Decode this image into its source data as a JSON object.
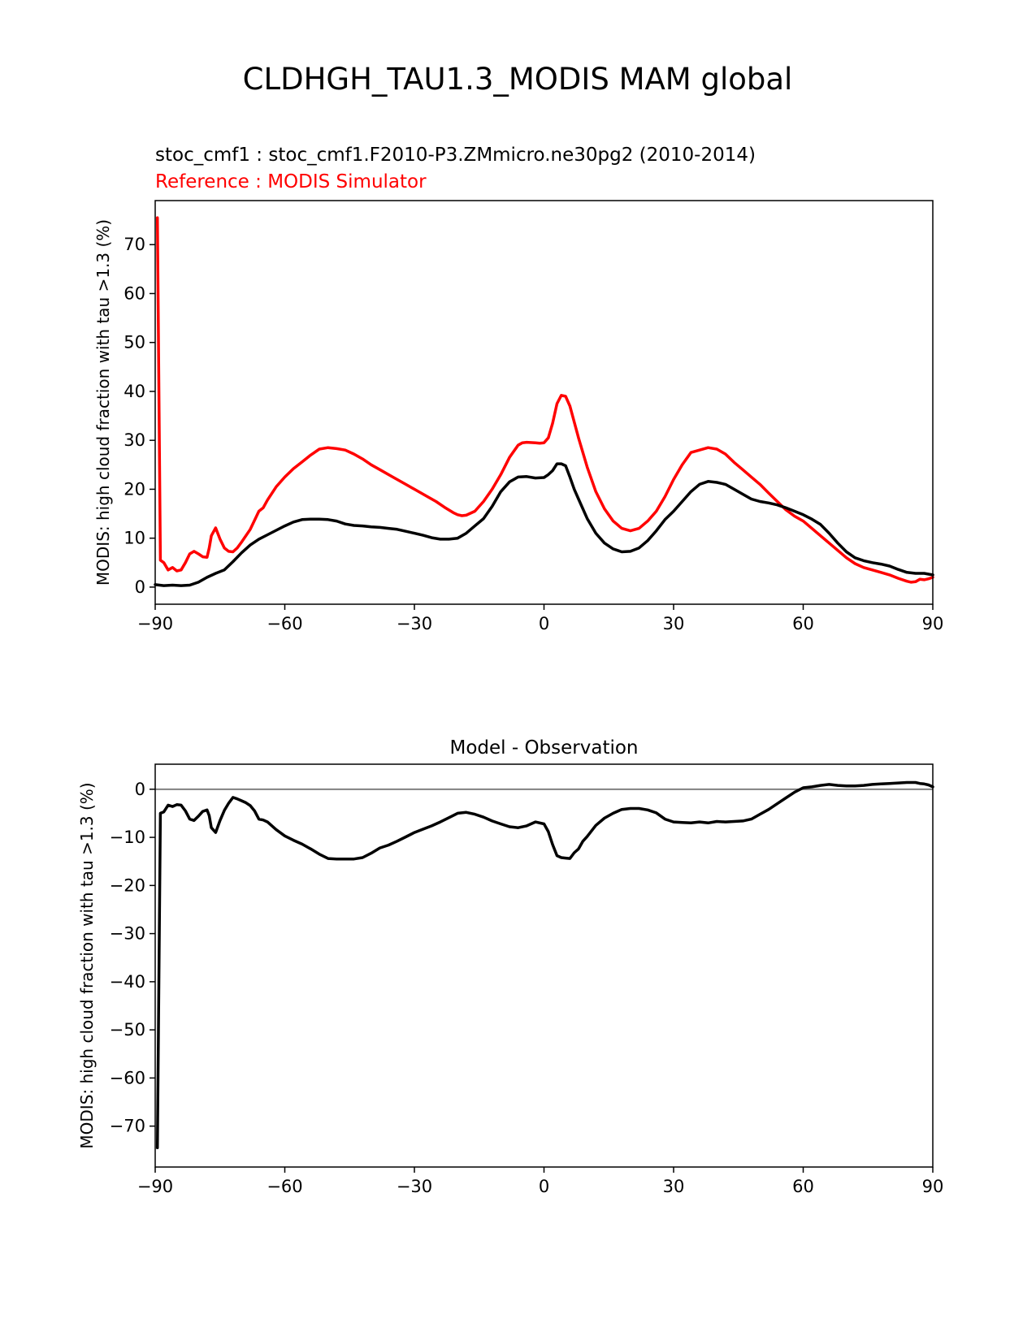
{
  "figure": {
    "suptitle": "CLDHGH_TAU1.3_MODIS MAM global"
  },
  "chart_data": [
    {
      "type": "line",
      "title_lines": [
        {
          "text": "stoc_cmf1 : stoc_cmf1.F2010-P3.ZMmicro.ne30pg2 (2010-2014)",
          "color": "#000000"
        },
        {
          "text": "Reference : MODIS Simulator",
          "color": "#ff0000"
        }
      ],
      "xlabel": "",
      "ylabel": "MODIS: high cloud fraction with tau >1.3 (%)",
      "xlim": [
        -90,
        90
      ],
      "ylim": [
        -3.5,
        79
      ],
      "xticks": [
        -90,
        -60,
        -30,
        0,
        30,
        60,
        90
      ],
      "xtick_labels": [
        "−90",
        "−60",
        "−30",
        "0",
        "30",
        "60",
        "90"
      ],
      "yticks": [
        0,
        10,
        20,
        30,
        40,
        50,
        60,
        70
      ],
      "ytick_labels": [
        "0",
        "10",
        "20",
        "30",
        "40",
        "50",
        "60",
        "70"
      ],
      "grid": false,
      "series": [
        {
          "role": "reference",
          "color": "#ff0000",
          "x": [
            -89.5,
            -88.8,
            -88,
            -87,
            -86,
            -85,
            -84,
            -83,
            -82,
            -81,
            -80,
            -79,
            -78,
            -77.5,
            -77,
            -76,
            -75,
            -74,
            -73,
            -72,
            -71,
            -70,
            -68,
            -66,
            -65,
            -64,
            -62,
            -60,
            -58,
            -56,
            -54,
            -52,
            -50,
            -48,
            -46,
            -44,
            -42,
            -40,
            -38,
            -35,
            -32,
            -30,
            -27,
            -25,
            -23,
            -21,
            -20,
            -19,
            -18,
            -16,
            -14,
            -12,
            -10,
            -8,
            -6,
            -5,
            -4,
            -2,
            -1,
            0,
            1,
            2,
            3,
            4,
            5,
            6,
            8,
            10,
            12,
            14,
            16,
            18,
            20,
            22,
            24,
            26,
            28,
            30,
            32,
            34,
            36,
            38,
            40,
            42,
            44,
            46,
            48,
            50,
            52,
            54,
            56,
            58,
            60,
            62,
            64,
            66,
            68,
            70,
            72,
            74,
            76,
            78,
            80,
            82,
            84,
            85,
            86,
            87,
            88,
            89,
            90
          ],
          "y": [
            75.5,
            5.5,
            5,
            3.5,
            4,
            3.3,
            3.5,
            5,
            6.8,
            7.3,
            6.8,
            6.2,
            6.1,
            8,
            10.5,
            12.1,
            9.8,
            8,
            7.3,
            7.2,
            8,
            9.2,
            11.8,
            15.5,
            16.2,
            17.8,
            20.5,
            22.5,
            24.2,
            25.6,
            27,
            28.2,
            28.5,
            28.3,
            28,
            27.2,
            26.2,
            25,
            24,
            22.5,
            21,
            20,
            18.5,
            17.5,
            16.3,
            15.2,
            14.8,
            14.6,
            14.7,
            15.5,
            17.5,
            20,
            23,
            26.5,
            29,
            29.5,
            29.6,
            29.5,
            29.4,
            29.5,
            30.5,
            33.5,
            37.5,
            39.2,
            39,
            37,
            30.5,
            24.5,
            19.5,
            16,
            13.5,
            12,
            11.5,
            12,
            13.5,
            15.5,
            18.5,
            22,
            25,
            27.5,
            28,
            28.5,
            28.2,
            27.2,
            25.5,
            24,
            22.5,
            21,
            19.2,
            17.5,
            15.8,
            14.5,
            13.5,
            12,
            10.5,
            9,
            7.5,
            6,
            4.8,
            4,
            3.5,
            3,
            2.5,
            1.8,
            1.2,
            1,
            1.1,
            1.6,
            1.5,
            1.7,
            2
          ]
        },
        {
          "role": "model",
          "color": "#000000",
          "x": [
            -90,
            -88,
            -86,
            -84,
            -82,
            -80,
            -78,
            -76,
            -74,
            -72,
            -70,
            -68,
            -66,
            -64,
            -62,
            -60,
            -58,
            -56,
            -54,
            -52,
            -50,
            -48,
            -46,
            -44,
            -42,
            -40,
            -38,
            -36,
            -34,
            -32,
            -30,
            -28,
            -26,
            -24,
            -22,
            -20,
            -18,
            -16,
            -14,
            -12,
            -10,
            -8,
            -6,
            -4,
            -2,
            0,
            1,
            2,
            3,
            4,
            5,
            6,
            7,
            8,
            10,
            12,
            14,
            16,
            18,
            20,
            22,
            24,
            26,
            28,
            30,
            32,
            34,
            36,
            38,
            40,
            42,
            44,
            46,
            48,
            50,
            52,
            54,
            56,
            58,
            60,
            62,
            64,
            66,
            68,
            70,
            72,
            74,
            76,
            78,
            80,
            82,
            84,
            86,
            88,
            90
          ],
          "y": [
            0.5,
            0.3,
            0.4,
            0.3,
            0.4,
            1,
            2,
            2.8,
            3.5,
            5.2,
            7,
            8.6,
            9.8,
            10.7,
            11.6,
            12.5,
            13.3,
            13.8,
            13.9,
            13.9,
            13.8,
            13.5,
            12.9,
            12.6,
            12.5,
            12.3,
            12.2,
            12,
            11.8,
            11.4,
            11,
            10.6,
            10.1,
            9.8,
            9.8,
            10,
            11,
            12.5,
            14,
            16.5,
            19.5,
            21.5,
            22.5,
            22.6,
            22.3,
            22.4,
            23,
            23.8,
            25.2,
            25.2,
            24.8,
            22.5,
            20,
            18,
            14,
            11,
            9,
            7.8,
            7.2,
            7.3,
            8,
            9.5,
            11.5,
            13.8,
            15.5,
            17.5,
            19.5,
            21,
            21.6,
            21.4,
            21,
            20,
            19,
            18,
            17.5,
            17.2,
            16.8,
            16.2,
            15.5,
            14.8,
            13.9,
            12.8,
            11,
            9,
            7.2,
            6,
            5.4,
            5,
            4.7,
            4.3,
            3.6,
            3,
            2.8,
            2.8,
            2.5
          ]
        }
      ]
    },
    {
      "type": "line",
      "title_lines": [
        {
          "text": "Model - Observation",
          "color": "#000000"
        }
      ],
      "xlabel": "",
      "ylabel": "MODIS: high cloud fraction with tau >1.3 (%)",
      "xlim": [
        -90,
        90
      ],
      "ylim": [
        -78.5,
        5.2
      ],
      "xticks": [
        -90,
        -60,
        -30,
        0,
        30,
        60,
        90
      ],
      "xtick_labels": [
        "−90",
        "−60",
        "−30",
        "0",
        "30",
        "60",
        "90"
      ],
      "yticks": [
        0,
        -10,
        -20,
        -30,
        -40,
        -50,
        -60,
        -70
      ],
      "ytick_labels": [
        "0",
        "−10",
        "−20",
        "−30",
        "−40",
        "−50",
        "−60",
        "−70"
      ],
      "grid": false,
      "zero_line": {
        "y": 0,
        "color": "#808080"
      },
      "series": [
        {
          "role": "difference",
          "color": "#000000",
          "x": [
            -89.5,
            -88.8,
            -88,
            -87,
            -86,
            -85,
            -84,
            -83,
            -82,
            -81,
            -80,
            -79,
            -78,
            -77.5,
            -77,
            -76,
            -75,
            -74,
            -73,
            -72,
            -71,
            -70,
            -69,
            -68,
            -67,
            -66,
            -65,
            -64,
            -62,
            -60,
            -58,
            -56,
            -54,
            -52,
            -50,
            -48,
            -46,
            -44,
            -42,
            -40,
            -38,
            -36,
            -34,
            -32,
            -30,
            -28,
            -26,
            -24,
            -22,
            -20,
            -18,
            -16,
            -14,
            -12,
            -10,
            -8,
            -6,
            -4,
            -2,
            0,
            1,
            2,
            3,
            4,
            5,
            6,
            7,
            8,
            9,
            10,
            12,
            14,
            16,
            18,
            20,
            22,
            24,
            26,
            28,
            30,
            32,
            34,
            36,
            38,
            40,
            42,
            44,
            46,
            48,
            50,
            52,
            54,
            56,
            58,
            60,
            62,
            64,
            66,
            68,
            70,
            72,
            74,
            76,
            78,
            80,
            82,
            84,
            86,
            87,
            88,
            89,
            90
          ],
          "y": [
            -74.5,
            -5,
            -4.7,
            -3.3,
            -3.6,
            -3.2,
            -3.3,
            -4.5,
            -6.2,
            -6.5,
            -5.6,
            -4.6,
            -4.3,
            -5.5,
            -8,
            -9,
            -6.5,
            -4.4,
            -2.9,
            -1.7,
            -2,
            -2.4,
            -2.8,
            -3.4,
            -4.5,
            -6.2,
            -6.4,
            -6.8,
            -8.4,
            -9.7,
            -10.6,
            -11.4,
            -12.4,
            -13.5,
            -14.4,
            -14.5,
            -14.5,
            -14.5,
            -14.2,
            -13.3,
            -12.2,
            -11.6,
            -10.8,
            -9.9,
            -9,
            -8.3,
            -7.6,
            -6.8,
            -5.9,
            -5,
            -4.8,
            -5.2,
            -5.8,
            -6.6,
            -7.2,
            -7.8,
            -8,
            -7.6,
            -6.8,
            -7.2,
            -8.8,
            -11.5,
            -13.8,
            -14.2,
            -14.3,
            -14.4,
            -13.2,
            -12.4,
            -10.8,
            -9.8,
            -7.5,
            -6,
            -5,
            -4.2,
            -4,
            -4,
            -4.3,
            -4.9,
            -6.2,
            -6.8,
            -6.9,
            -7,
            -6.8,
            -7,
            -6.7,
            -6.8,
            -6.7,
            -6.6,
            -6.2,
            -5.2,
            -4.2,
            -3,
            -1.8,
            -0.6,
            0.3,
            0.5,
            0.8,
            1,
            0.8,
            0.7,
            0.7,
            0.8,
            1,
            1.1,
            1.2,
            1.3,
            1.4,
            1.4,
            1.2,
            1.1,
            0.9,
            0.5
          ]
        }
      ]
    }
  ]
}
